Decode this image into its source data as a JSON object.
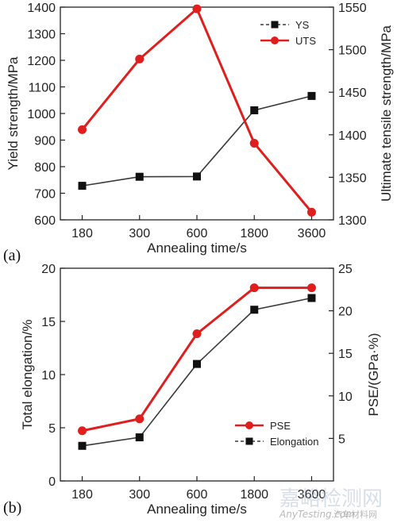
{
  "chart_data": [
    {
      "panel_label": "(a)",
      "type": "line",
      "categories": [
        "180",
        "300",
        "600",
        "1800",
        "3600"
      ],
      "xlabel": "Annealing time/s",
      "ylabel": "Yield strength/MPa",
      "ylim": [
        600,
        1400
      ],
      "yticks": [
        600,
        700,
        800,
        900,
        1000,
        1100,
        1200,
        1300,
        1400
      ],
      "y2label": "Ultimate tensile strength/MPa",
      "y2lim": [
        1300,
        1550
      ],
      "y2ticks": [
        1300,
        1350,
        1400,
        1450,
        1500,
        1550
      ],
      "legend_position": "top-right",
      "series": [
        {
          "name": "YS",
          "axis": "left",
          "color": "#3a3a3a",
          "marker": "square",
          "values": [
            728,
            762,
            763,
            1012,
            1066
          ]
        },
        {
          "name": "UTS",
          "axis": "right",
          "color": "#e01e1e",
          "marker": "circle",
          "values": [
            1406,
            1489,
            1548,
            1390,
            1309
          ]
        }
      ]
    },
    {
      "panel_label": "(b)",
      "type": "line",
      "categories": [
        "180",
        "300",
        "600",
        "1800",
        "3600"
      ],
      "xlabel": "Annealing time/s",
      "ylabel": "Total elongation/%",
      "ylim": [
        0,
        20
      ],
      "yticks": [
        0,
        5,
        10,
        15,
        20
      ],
      "y2label": "PSE/(GPa·%)",
      "y2lim": [
        0,
        25
      ],
      "y2ticks": [
        5,
        10,
        15,
        20,
        25
      ],
      "legend_position": "bottom-right",
      "series": [
        {
          "name": "PSE",
          "axis": "right",
          "color": "#e01e1e",
          "marker": "circle",
          "values": [
            5.9,
            7.3,
            17.3,
            22.7,
            22.7
          ]
        },
        {
          "name": "Elongation",
          "axis": "left",
          "color": "#3a3a3a",
          "marker": "square",
          "values": [
            3.3,
            4.1,
            11.0,
            16.1,
            17.2
          ]
        }
      ]
    }
  ],
  "watermark": {
    "main": "嘉峪检测网",
    "sub": "AnyTesting.com",
    "sub2": "汽车材料网"
  }
}
